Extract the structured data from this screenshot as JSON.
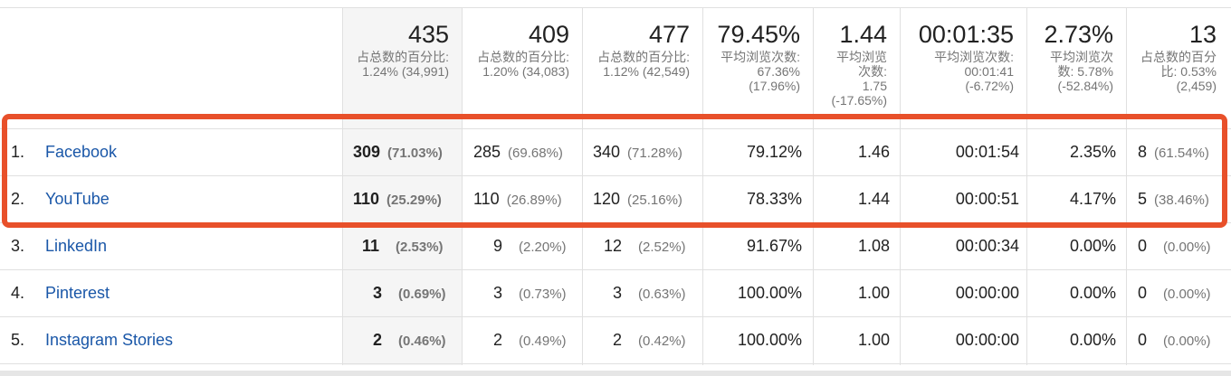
{
  "header": {
    "columns": [
      {
        "total": "435",
        "sub": "占总数的百分比: 1.24% (34,991)"
      },
      {
        "total": "409",
        "sub": "占总数的百分比: 1.20% (34,083)"
      },
      {
        "total": "477",
        "sub": "占总数的百分比: 1.12% (42,549)"
      },
      {
        "total": "79.45%",
        "sub": "平均浏览次数: 67.36% (17.96%)"
      },
      {
        "total": "1.44",
        "sub": "平均浏览次数: 1.75 (-17.65%)"
      },
      {
        "total": "00:01:35",
        "sub": "平均浏览次数: 00:01:41 (-6.72%)"
      },
      {
        "total": "2.73%",
        "sub": "平均浏览次数: 5.78% (-52.84%)"
      },
      {
        "total": "13",
        "sub": "占总数的百分比: 0.53% (2,459)"
      }
    ]
  },
  "rows": [
    {
      "index": "1.",
      "source": "Facebook",
      "c1": "309",
      "c1p": "(71.03%)",
      "c2": "285",
      "c2p": "(69.68%)",
      "c3": "340",
      "c3p": "(71.28%)",
      "c4": "79.12%",
      "c5": "1.46",
      "c6": "00:01:54",
      "c7": "2.35%",
      "c8": "8",
      "c8p": "(61.54%)"
    },
    {
      "index": "2.",
      "source": "YouTube",
      "c1": "110",
      "c1p": "(25.29%)",
      "c2": "110",
      "c2p": "(26.89%)",
      "c3": "120",
      "c3p": "(25.16%)",
      "c4": "78.33%",
      "c5": "1.44",
      "c6": "00:00:51",
      "c7": "4.17%",
      "c8": "5",
      "c8p": "(38.46%)"
    },
    {
      "index": "3.",
      "source": "LinkedIn",
      "c1": "11",
      "c1p": "(2.53%)",
      "c2": "9",
      "c2p": "(2.20%)",
      "c3": "12",
      "c3p": "(2.52%)",
      "c4": "91.67%",
      "c5": "1.08",
      "c6": "00:00:34",
      "c7": "0.00%",
      "c8": "0",
      "c8p": "(0.00%)"
    },
    {
      "index": "4.",
      "source": "Pinterest",
      "c1": "3",
      "c1p": "(0.69%)",
      "c2": "3",
      "c2p": "(0.73%)",
      "c3": "3",
      "c3p": "(0.63%)",
      "c4": "100.00%",
      "c5": "1.00",
      "c6": "00:00:00",
      "c7": "0.00%",
      "c8": "0",
      "c8p": "(0.00%)"
    },
    {
      "index": "5.",
      "source": "Instagram Stories",
      "c1": "2",
      "c1p": "(0.46%)",
      "c2": "2",
      "c2p": "(0.49%)",
      "c3": "2",
      "c3p": "(0.42%)",
      "c4": "100.00%",
      "c5": "1.00",
      "c6": "00:00:00",
      "c7": "0.00%",
      "c8": "0",
      "c8p": "(0.00%)"
    }
  ],
  "colors": {
    "highlight": "#e8502a",
    "link": "#1a57a8",
    "muted": "#757575"
  }
}
